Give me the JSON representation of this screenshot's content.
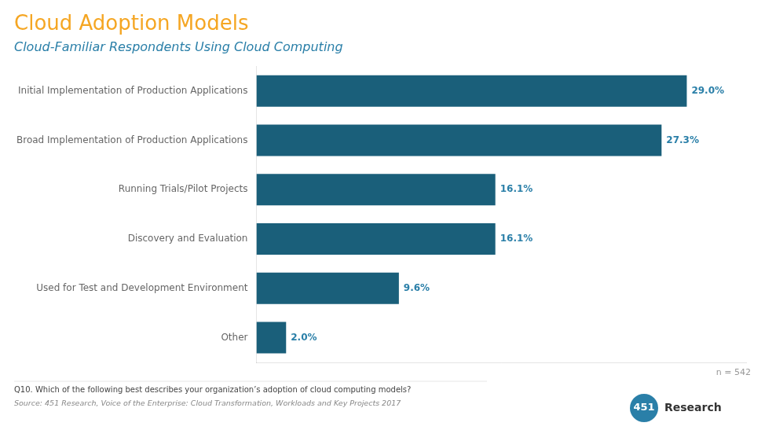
{
  "chart_data": {
    "type": "bar",
    "orientation": "horizontal",
    "title": "Cloud Adoption Models",
    "subtitle": "Cloud-Familiar Respondents Using Cloud Computing",
    "categories": [
      "Initial Implementation of Production Applications",
      "Broad Implementation of Production Applications",
      "Running Trials/Pilot Projects",
      "Discovery and Evaluation",
      "Used for Test and Development Environment",
      "Other"
    ],
    "values": [
      29.0,
      27.3,
      16.1,
      16.1,
      9.6,
      2.0
    ],
    "value_labels": [
      "29.0%",
      "27.3%",
      "16.1%",
      "16.1%",
      "9.6%",
      "2.0%"
    ],
    "data_labels": true,
    "color": "#1A5F7A",
    "xlim": [
      0,
      33
    ],
    "grid": false,
    "legend": "none",
    "tick_labels": "y",
    "annotations": [
      "n = 542",
      "Q10. Which of the following best describes your organization’s adoption of cloud computing models?",
      "Source: 451 Research, Voice of the Enterprise: Cloud Transformation, Workloads and Key Projects 2017",
      "451",
      "Research"
    ]
  }
}
